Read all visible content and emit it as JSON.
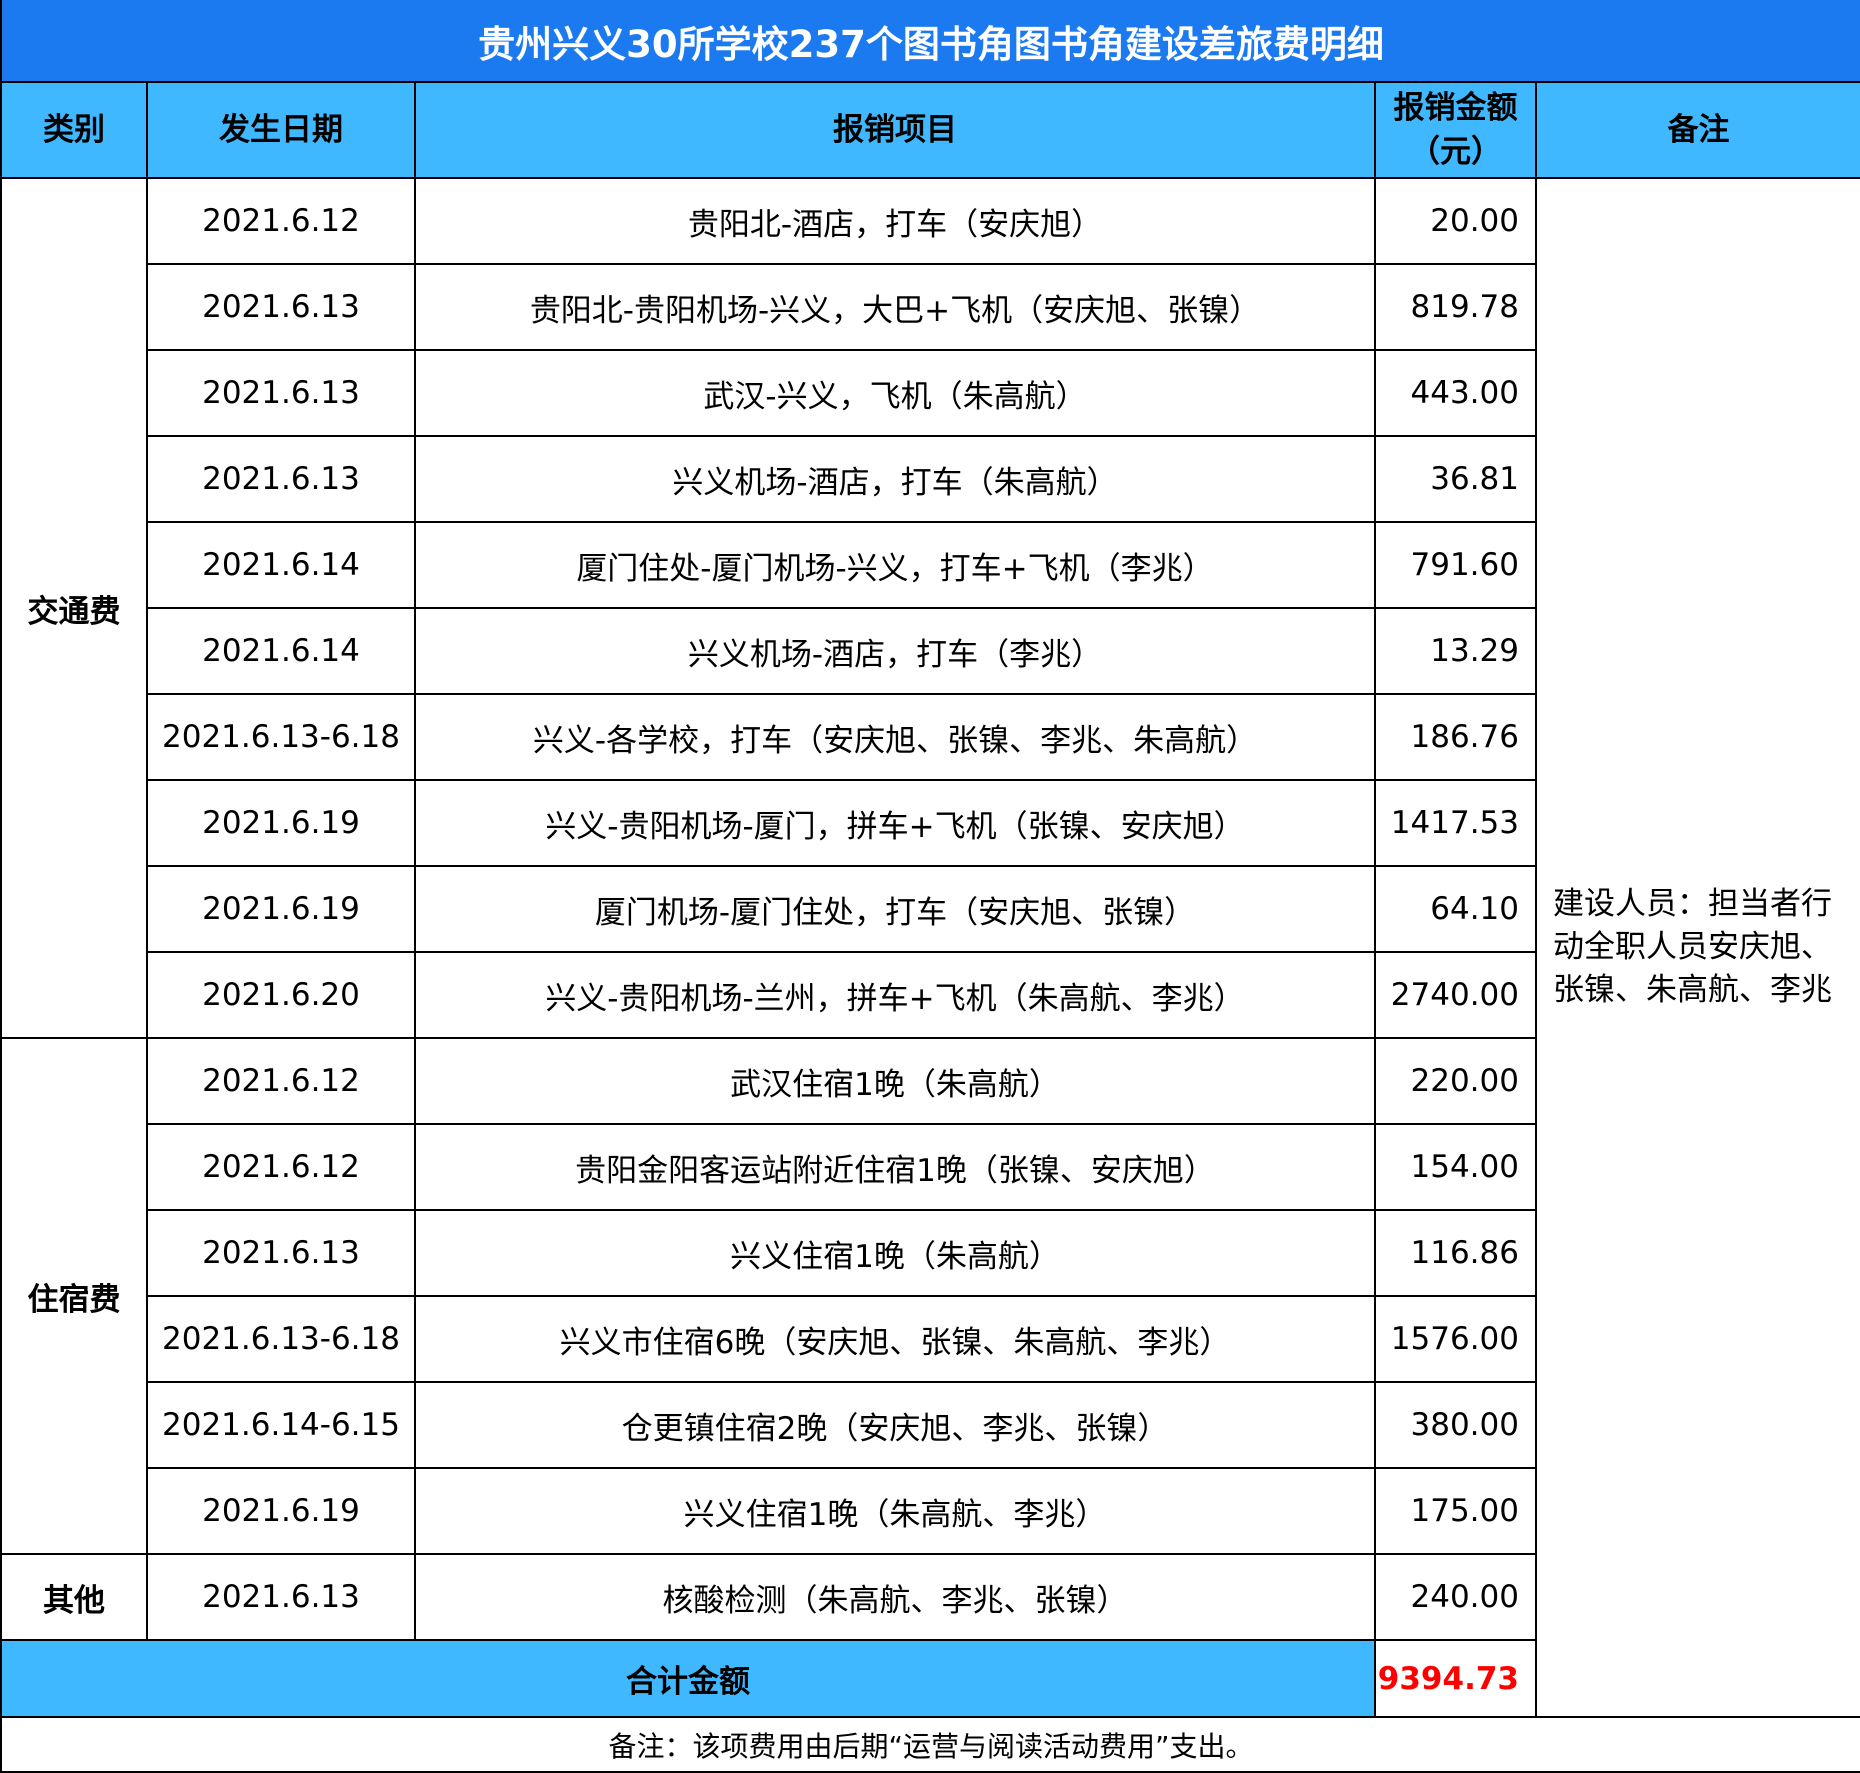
{
  "title": "贵州兴义30所学校237个图书角图书角建设差旅费明细",
  "headers": {
    "category": "类别",
    "date": "发生日期",
    "item": "报销项目",
    "amount": "报销金额（元）",
    "remark": "备注"
  },
  "categories": {
    "transport": "交通费",
    "lodging": "住宿费",
    "other": "其他"
  },
  "rows": [
    {
      "date": "2021.6.12",
      "item": "贵阳北-酒店，打车（安庆旭）",
      "amount": "20.00"
    },
    {
      "date": "2021.6.13",
      "item": "贵阳北-贵阳机场-兴义，大巴+飞机（安庆旭、张镍）",
      "amount": "819.78"
    },
    {
      "date": "2021.6.13",
      "item": "武汉-兴义，飞机（朱高航）",
      "amount": "443.00"
    },
    {
      "date": "2021.6.13",
      "item": "兴义机场-酒店，打车（朱高航）",
      "amount": "36.81"
    },
    {
      "date": "2021.6.14",
      "item": "厦门住处-厦门机场-兴义，打车+飞机（李兆）",
      "amount": "791.60"
    },
    {
      "date": "2021.6.14",
      "item": "兴义机场-酒店，打车（李兆）",
      "amount": "13.29"
    },
    {
      "date": "2021.6.13-6.18",
      "item": "兴义-各学校，打车（安庆旭、张镍、李兆、朱高航）",
      "amount": "186.76"
    },
    {
      "date": "2021.6.19",
      "item": "兴义-贵阳机场-厦门，拼车+飞机（张镍、安庆旭）",
      "amount": "1417.53"
    },
    {
      "date": "2021.6.19",
      "item": "厦门机场-厦门住处，打车（安庆旭、张镍）",
      "amount": "64.10"
    },
    {
      "date": "2021.6.20",
      "item": "兴义-贵阳机场-兰州，拼车+飞机（朱高航、李兆）",
      "amount": "2740.00"
    },
    {
      "date": "2021.6.12",
      "item": "武汉住宿1晚（朱高航）",
      "amount": "220.00"
    },
    {
      "date": "2021.6.12",
      "item": "贵阳金阳客运站附近住宿1晚（张镍、安庆旭）",
      "amount": "154.00"
    },
    {
      "date": "2021.6.13",
      "item": "兴义住宿1晚（朱高航）",
      "amount": "116.86"
    },
    {
      "date": "2021.6.13-6.18",
      "item": "兴义市住宿6晚（安庆旭、张镍、朱高航、李兆）",
      "amount": "1576.00"
    },
    {
      "date": "2021.6.14-6.15",
      "item": "仓更镇住宿2晚（安庆旭、李兆、张镍）",
      "amount": "380.00"
    },
    {
      "date": "2021.6.19",
      "item": "兴义住宿1晚（朱高航、李兆）",
      "amount": "175.00"
    },
    {
      "date": "2021.6.13",
      "item": "核酸检测（朱高航、李兆、张镍）",
      "amount": "240.00"
    }
  ],
  "remark": "建设人员：担当者行动全职人员安庆旭、张镍、朱高航、李兆",
  "total": {
    "label": "合计金额",
    "amount": "9394.73"
  },
  "footnote": "备注：该项费用由后期“运营与阅读活动费用”支出。",
  "colors": {
    "title_bg": "#1c7af0",
    "header_bg": "#40b8ff",
    "total_amount": "#ff0000"
  }
}
